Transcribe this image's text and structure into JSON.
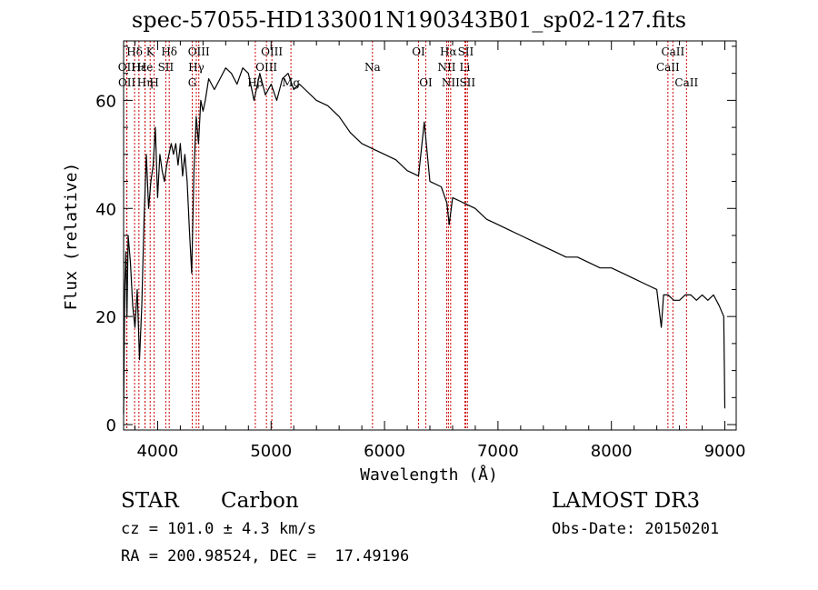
{
  "figure": {
    "title": "spec-57055-HD133001N190343B01_sp02-127.fits",
    "object_class": "STAR",
    "object_subclass": "Carbon",
    "survey": "LAMOST DR3",
    "redshift_line": "cz = 101.0 ± 4.3 km/s",
    "obs_date_line": "Obs-Date: 20150201",
    "coords_line": "RA = 200.98524, DEC =  17.49196"
  },
  "chart_data": {
    "type": "line",
    "xlabel": "Wavelength (Å)",
    "ylabel": "Flux (relative)",
    "xlim": [
      3700,
      9100
    ],
    "ylim": [
      -1,
      71
    ],
    "xticks": [
      4000,
      5000,
      6000,
      7000,
      8000,
      9000
    ],
    "yticks": [
      0,
      20,
      40,
      60
    ],
    "grid": false,
    "series": [
      {
        "x": [
          3700,
          3710,
          3720,
          3730,
          3740,
          3760,
          3780,
          3800,
          3820,
          3840,
          3860,
          3880,
          3900,
          3920,
          3940,
          3960,
          3980,
          4000,
          4020,
          4040,
          4060,
          4080,
          4100,
          4120,
          4140,
          4160,
          4180,
          4200,
          4220,
          4240,
          4260,
          4280,
          4300,
          4320,
          4340,
          4360,
          4380,
          4400,
          4420,
          4450,
          4500,
          4550,
          4600,
          4650,
          4700,
          4750,
          4800,
          4850,
          4900,
          4950,
          5000,
          5050,
          5100,
          5150,
          5200,
          5250,
          5300,
          5400,
          5500,
          5600,
          5700,
          5800,
          5900,
          6000,
          6100,
          6200,
          6300,
          6350,
          6400,
          6500,
          6550,
          6570,
          6600,
          6700,
          6800,
          6900,
          7000,
          7100,
          7200,
          7300,
          7400,
          7500,
          7600,
          7700,
          7800,
          7900,
          8000,
          8100,
          8200,
          8300,
          8400,
          8440,
          8460,
          8500,
          8550,
          8600,
          8650,
          8700,
          8750,
          8800,
          8850,
          8900,
          8950,
          8990,
          9000
        ],
        "y": [
          2,
          25,
          32,
          20,
          35,
          30,
          22,
          18,
          25,
          12,
          22,
          38,
          50,
          40,
          45,
          48,
          55,
          42,
          50,
          47,
          45,
          48,
          50,
          52,
          50,
          52,
          48,
          52,
          46,
          50,
          45,
          36,
          28,
          47,
          57,
          52,
          60,
          58,
          60,
          64,
          62,
          64,
          66,
          65,
          63,
          66,
          65,
          60,
          65,
          61,
          63,
          60,
          64,
          65,
          62,
          63,
          62,
          60,
          59,
          57,
          54,
          52,
          51,
          50,
          49,
          47,
          46,
          56,
          45,
          44,
          41,
          37,
          42,
          41,
          40,
          38,
          37,
          36,
          35,
          34,
          33,
          32,
          31,
          31,
          30,
          29,
          29,
          28,
          27,
          26,
          25,
          18,
          24,
          24,
          23,
          23,
          24,
          24,
          23,
          24,
          23,
          24,
          22,
          20,
          3
        ]
      }
    ],
    "lines": [
      {
        "label": "Hδ",
        "x": 3797,
        "row": 0
      },
      {
        "label": "OII",
        "x": 3727,
        "row": 1
      },
      {
        "label": "OII",
        "x": 3729,
        "row": 2
      },
      {
        "label": "Hε",
        "x": 3835,
        "row": 1
      },
      {
        "label": "Hη",
        "x": 3889,
        "row": 2
      },
      {
        "label": "K",
        "x": 3934,
        "row": 0
      },
      {
        "label": "He",
        "x": 3889,
        "row": 1
      },
      {
        "label": "H",
        "x": 3969,
        "row": 2
      },
      {
        "label": "SII",
        "x": 4072,
        "row": 1
      },
      {
        "label": "Hδ",
        "x": 4102,
        "row": 0
      },
      {
        "label": "OIII",
        "x": 4363,
        "row": 0
      },
      {
        "label": "Hγ",
        "x": 4341,
        "row": 1
      },
      {
        "label": "G",
        "x": 4305,
        "row": 2
      },
      {
        "label": "Hβ",
        "x": 4861,
        "row": 2
      },
      {
        "label": "OIII",
        "x": 5007,
        "row": 0
      },
      {
        "label": "OIII",
        "x": 4959,
        "row": 1
      },
      {
        "label": "Mg",
        "x": 5175,
        "row": 2
      },
      {
        "label": "Na",
        "x": 5894,
        "row": 1
      },
      {
        "label": "OI",
        "x": 6300,
        "row": 0
      },
      {
        "label": "OI",
        "x": 6364,
        "row": 2
      },
      {
        "label": "Hα",
        "x": 6563,
        "row": 0
      },
      {
        "label": "NII",
        "x": 6548,
        "row": 1
      },
      {
        "label": "NII",
        "x": 6583,
        "row": 2
      },
      {
        "label": "SII",
        "x": 6716,
        "row": 0
      },
      {
        "label": "Li",
        "x": 6708,
        "row": 1
      },
      {
        "label": "SII",
        "x": 6731,
        "row": 2
      },
      {
        "label": "CaII",
        "x": 8542,
        "row": 0
      },
      {
        "label": "CaII",
        "x": 8498,
        "row": 1
      },
      {
        "label": "CaII",
        "x": 8662,
        "row": 2
      }
    ],
    "line_color": "#cc0000"
  }
}
